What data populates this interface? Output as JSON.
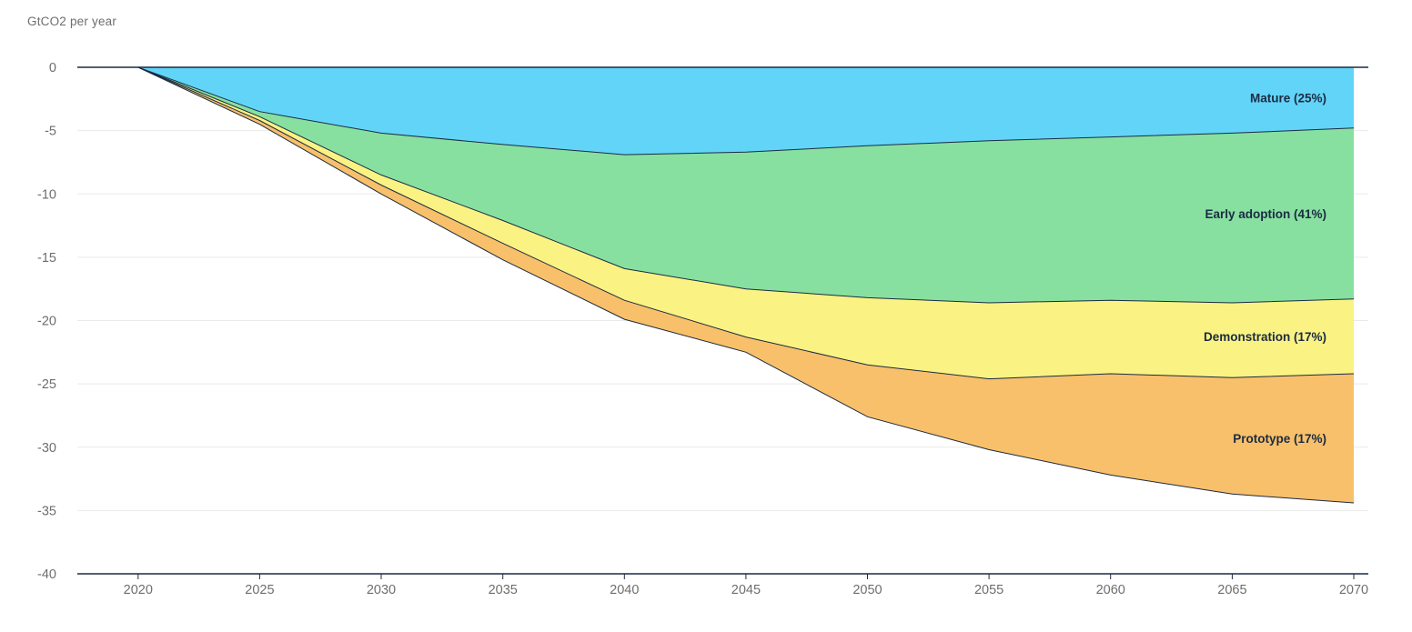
{
  "page": {
    "background": "#ffffff"
  },
  "chart_data": {
    "type": "area",
    "stacked": true,
    "title": "GtCO2 per year",
    "xlabel": "",
    "ylabel": "GtCO2 per year",
    "grid": "horizontal",
    "legend_position": "inline-right",
    "xlim": [
      2017.5,
      2070.6
    ],
    "ylim": [
      -40,
      0
    ],
    "x": [
      2018,
      2020,
      2025,
      2030,
      2035,
      2040,
      2045,
      2050,
      2055,
      2060,
      2065,
      2070
    ],
    "x_ticks": [
      2020,
      2025,
      2030,
      2035,
      2040,
      2045,
      2050,
      2055,
      2060,
      2065,
      2070
    ],
    "y_ticks": [
      0,
      -5,
      -10,
      -15,
      -20,
      -25,
      -30,
      -35,
      -40
    ],
    "series": [
      {
        "name": "Mature",
        "label": "Mature (25%)",
        "percent": "25%",
        "color": "#62D4F8",
        "values": [
          0,
          0,
          -3.5,
          -5.2,
          -6.1,
          -6.9,
          -6.7,
          -6.2,
          -5.8,
          -5.5,
          -5.2,
          -4.8
        ]
      },
      {
        "name": "Early adoption",
        "label": "Early adoption (41%)",
        "percent": "41%",
        "color": "#87E0A0",
        "values": [
          0,
          0,
          -0.4,
          -3.3,
          -6.0,
          -9.0,
          -10.8,
          -12.0,
          -12.8,
          -12.9,
          -13.4,
          -13.5
        ]
      },
      {
        "name": "Demonstration",
        "label": "Demonstration (17%)",
        "percent": "17%",
        "color": "#FAF283",
        "values": [
          0,
          0,
          -0.3,
          -0.8,
          -1.8,
          -2.5,
          -3.8,
          -5.3,
          -6.0,
          -5.8,
          -5.9,
          -5.9
        ]
      },
      {
        "name": "Prototype",
        "label": "Prototype (17%)",
        "percent": "17%",
        "color": "#F8C06A",
        "values": [
          0,
          0,
          -0.3,
          -0.7,
          -1.3,
          -1.5,
          -1.2,
          -4.1,
          -5.6,
          -8.0,
          -9.2,
          -10.2
        ]
      }
    ],
    "colors": {
      "line_color": "#1B2B42",
      "axis_color": "#1B2B42",
      "grid_color": "#EAEAEA",
      "tick_label_color": "#6E6E6E",
      "series_label_color": "#1B2B42",
      "title_color": "#6E6E6E"
    }
  }
}
